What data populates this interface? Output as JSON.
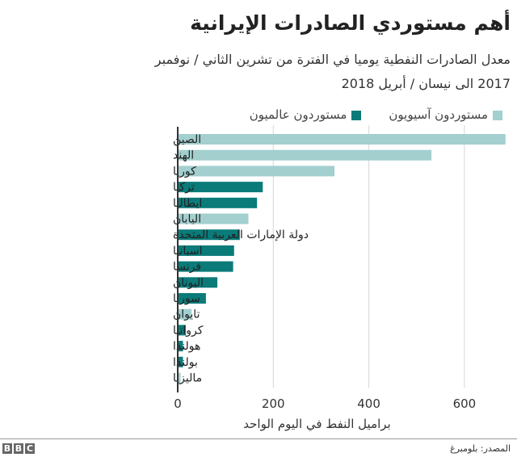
{
  "title": "أهم مستوردي الصادرات الإيرانية",
  "subtitle_line1": "معدل الصادرات النفطية يوميا في الفترة من تشرين الثاني / نوفمبر",
  "subtitle_line2": "2017 الى نيسان / أبريل 2018",
  "legend": [
    {
      "label": "مستوردون آسيويون",
      "color": "#a3cfcf"
    },
    {
      "label": "مستوردون عالميون",
      "color": "#0a7b79"
    }
  ],
  "source": "المصدر: بلومبرغ",
  "logo": "BBC",
  "chart_data": {
    "type": "bar",
    "orientation": "horizontal",
    "xlabel": "براميل النفط في اليوم الواحد",
    "xlim": [
      0,
      700
    ],
    "xticks": [
      0,
      200,
      400,
      600
    ],
    "grid": true,
    "categories": [
      "الصين",
      "الهند",
      "كوريا",
      "تركيا",
      "ايطاليا",
      "اليابان",
      "دولة الإمارات العربية المتحدة",
      "اسبانيا",
      "فرنسا",
      "اليونان",
      "سوريا",
      "تايوان",
      "كرواتيا",
      "هولندا",
      "بولندا",
      "ماليزيا"
    ],
    "values": [
      686,
      531,
      328,
      178,
      166,
      148,
      130,
      118,
      116,
      83,
      59,
      29,
      17,
      11,
      11,
      6
    ],
    "group": [
      "asian",
      "asian",
      "asian",
      "global",
      "global",
      "asian",
      "global",
      "global",
      "global",
      "global",
      "global",
      "asian",
      "global",
      "global",
      "global",
      "asian"
    ]
  }
}
